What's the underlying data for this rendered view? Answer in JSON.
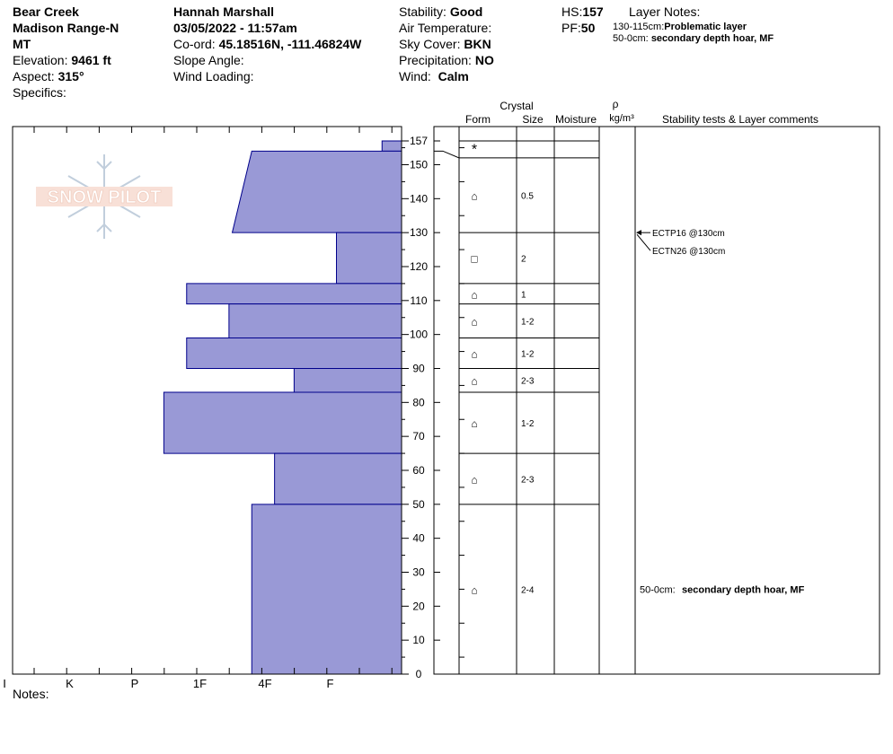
{
  "header": {
    "location": "Bear Creek",
    "range": "Madison Range-N",
    "state": "MT",
    "elevation_label": "Elevation:",
    "elevation": "9461 ft",
    "aspect_label": "Aspect:",
    "aspect": "315°",
    "specifics_label": "Specifics:",
    "observer": "Hannah Marshall",
    "datetime": "03/05/2022 - 11:57am",
    "coord_label": "Co-ord:",
    "coord": "45.18516N, -111.46824W",
    "slope_label": "Slope Angle:",
    "wind_loading_label": "Wind Loading:",
    "stability_label": "Stability:",
    "stability": "Good",
    "air_temp_label": "Air Temperature:",
    "sky_label": "Sky Cover:",
    "sky": "BKN",
    "precip_label": "Precipitation:",
    "precip": "NO",
    "wind_label": "Wind:",
    "wind": "Calm",
    "hs_label": "HS:",
    "hs": "157",
    "pf_label": "PF:",
    "pf": "50",
    "layer_notes_label": "Layer Notes:",
    "layer_note1_range": "130-115cm:",
    "layer_note1": "Problematic layer",
    "layer_note2_range": "50-0cm:",
    "layer_note2": "secondary depth hoar, MF"
  },
  "logo_text": "SNOW PILOT",
  "notes_label": "Notes:",
  "columns": {
    "crystal": "Crystal",
    "form": "Form",
    "size": "Size",
    "moisture": "Moisture",
    "rho": "ρ",
    "density_unit": "kg/m³",
    "stability_comments": "Stability tests & Layer comments"
  },
  "colors": {
    "hardness_fill": "#9999d6",
    "hardness_stroke": "#00008b"
  },
  "chart_data": {
    "type": "bar",
    "orientation": "horizontal-profile",
    "ylim": [
      0,
      157
    ],
    "yticks": [
      0,
      10,
      20,
      30,
      40,
      50,
      60,
      70,
      80,
      90,
      100,
      110,
      120,
      130,
      140,
      150,
      157
    ],
    "hardness_scale": [
      "I",
      "K",
      "P",
      "1F",
      "4F",
      "F"
    ],
    "hardness_values": {
      "F": 1,
      "4F": 2,
      "1F": 3,
      "P": 4,
      "K": 5,
      "I": 6
    },
    "layers": [
      {
        "top": 157,
        "bottom": 154,
        "hardness_top": 0.3,
        "hardness_bottom": 0.3
      },
      {
        "top": 154,
        "bottom": 130,
        "hardness_top": 2.3,
        "hardness_bottom": 2.6
      },
      {
        "top": 130,
        "bottom": 115,
        "hardness_top": 1.0,
        "hardness_bottom": 1.0
      },
      {
        "top": 115,
        "bottom": 109,
        "hardness_top": 3.3,
        "hardness_bottom": 3.3
      },
      {
        "top": 109,
        "bottom": 99,
        "hardness_top": 2.65,
        "hardness_bottom": 2.65
      },
      {
        "top": 99,
        "bottom": 90,
        "hardness_top": 3.3,
        "hardness_bottom": 3.3
      },
      {
        "top": 90,
        "bottom": 83,
        "hardness_top": 1.65,
        "hardness_bottom": 1.65
      },
      {
        "top": 83,
        "bottom": 65,
        "hardness_top": 3.65,
        "hardness_bottom": 3.65
      },
      {
        "top": 65,
        "bottom": 50,
        "hardness_top": 1.95,
        "hardness_bottom": 1.95
      },
      {
        "top": 50,
        "bottom": 0,
        "hardness_top": 2.3,
        "hardness_bottom": 2.3
      }
    ],
    "crystal_layers": [
      {
        "top": 157,
        "bottom": 152,
        "form": "*",
        "size": ""
      },
      {
        "top": 152,
        "bottom": 130,
        "form": "⌂",
        "size": "0.5"
      },
      {
        "top": 130,
        "bottom": 115,
        "form": "□",
        "size": "2"
      },
      {
        "top": 115,
        "bottom": 109,
        "form": "⌂",
        "size": "1"
      },
      {
        "top": 109,
        "bottom": 99,
        "form": "⌂",
        "size": "1-2"
      },
      {
        "top": 99,
        "bottom": 90,
        "form": "⌂",
        "size": "1-2"
      },
      {
        "top": 90,
        "bottom": 83,
        "form": "⌂",
        "size": "2-3"
      },
      {
        "top": 83,
        "bottom": 65,
        "form": "⌂",
        "size": "1-2"
      },
      {
        "top": 65,
        "bottom": 50,
        "form": "⌂",
        "size": "2-3"
      },
      {
        "top": 50,
        "bottom": 0,
        "form": "⌂",
        "size": "2-4"
      }
    ],
    "stability_tests": [
      {
        "label": "ECTP16 @130cm",
        "depth": 130
      },
      {
        "label": "ECTN26 @130cm",
        "depth": 130
      }
    ],
    "layer_comment": {
      "range": "50-0cm:",
      "text": "secondary depth hoar, MF",
      "depth": 25
    }
  }
}
